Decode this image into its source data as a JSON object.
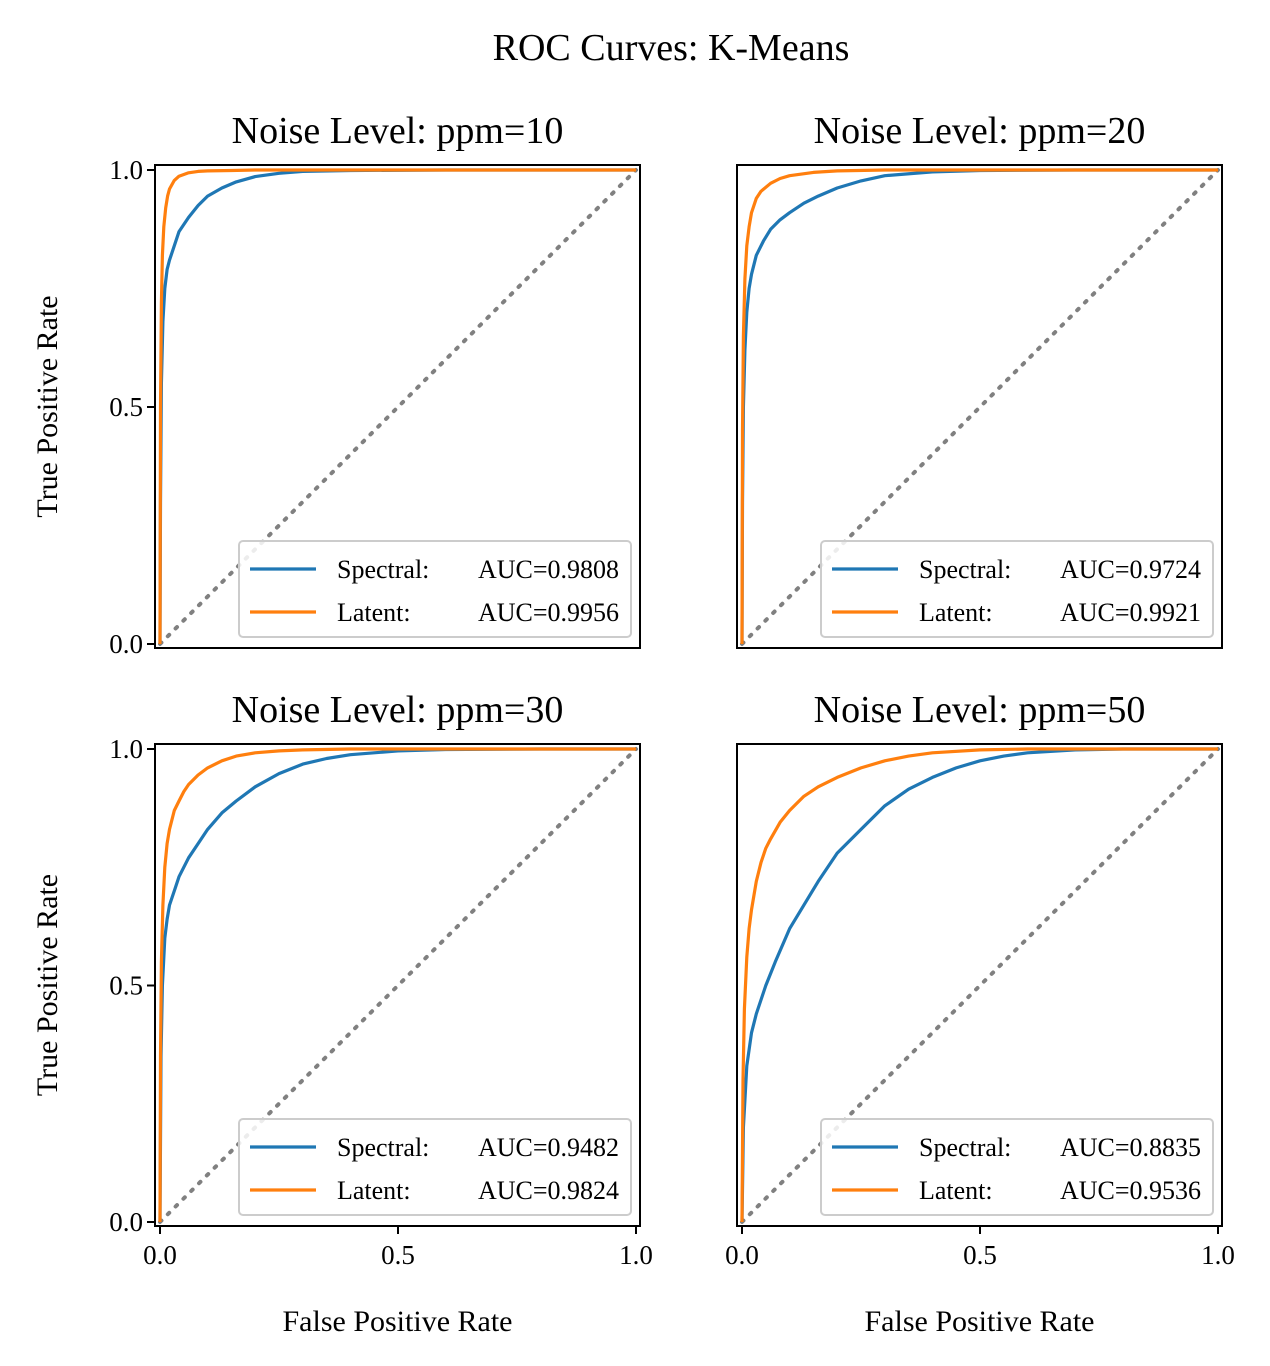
{
  "figure": {
    "title": "ROC Curves: K-Means"
  },
  "colors": {
    "spectral": "#1f77b4",
    "latent": "#ff7f0e",
    "chance": "#808080"
  },
  "chart_data": [
    {
      "type": "line",
      "title": "Noise Level: ppm=10",
      "xlabel": "",
      "ylabel": "True Positive Rate",
      "xlim": [
        0,
        1
      ],
      "ylim": [
        0,
        1
      ],
      "yticks": [
        "0.0",
        "0.5",
        "1.0"
      ],
      "xticks": [],
      "legend_position": "lower-right",
      "series": [
        {
          "name": "Spectral",
          "legend_label": "Spectral:",
          "auc_label": "AUC=0.9808",
          "x": [
            0,
            0.001,
            0.003,
            0.006,
            0.01,
            0.015,
            0.02,
            0.03,
            0.04,
            0.06,
            0.08,
            0.1,
            0.13,
            0.16,
            0.2,
            0.25,
            0.3,
            0.4,
            0.6,
            0.8,
            1.0
          ],
          "y": [
            0,
            0.3,
            0.55,
            0.68,
            0.75,
            0.79,
            0.81,
            0.84,
            0.87,
            0.9,
            0.925,
            0.945,
            0.962,
            0.975,
            0.986,
            0.993,
            0.997,
            0.999,
            1.0,
            1.0,
            1.0
          ]
        },
        {
          "name": "Latent",
          "legend_label": "Latent:",
          "auc_label": "AUC=0.9956",
          "x": [
            0,
            0.001,
            0.003,
            0.005,
            0.008,
            0.012,
            0.016,
            0.02,
            0.03,
            0.04,
            0.06,
            0.08,
            0.1,
            0.15,
            0.2,
            0.3,
            0.5,
            1.0
          ],
          "y": [
            0,
            0.5,
            0.72,
            0.82,
            0.88,
            0.92,
            0.945,
            0.96,
            0.978,
            0.987,
            0.994,
            0.997,
            0.998,
            0.999,
            1.0,
            1.0,
            1.0,
            1.0
          ]
        }
      ]
    },
    {
      "type": "line",
      "title": "Noise Level: ppm=20",
      "xlabel": "",
      "ylabel": "",
      "xlim": [
        0,
        1
      ],
      "ylim": [
        0,
        1
      ],
      "yticks": [],
      "xticks": [],
      "legend_position": "lower-right",
      "series": [
        {
          "name": "Spectral",
          "legend_label": "Spectral:",
          "auc_label": "AUC=0.9724",
          "x": [
            0,
            0.001,
            0.003,
            0.006,
            0.01,
            0.015,
            0.02,
            0.03,
            0.045,
            0.06,
            0.08,
            0.1,
            0.13,
            0.16,
            0.2,
            0.25,
            0.3,
            0.4,
            0.5,
            0.7,
            1.0
          ],
          "y": [
            0,
            0.3,
            0.5,
            0.62,
            0.7,
            0.75,
            0.78,
            0.82,
            0.85,
            0.875,
            0.895,
            0.91,
            0.93,
            0.945,
            0.962,
            0.977,
            0.988,
            0.996,
            0.999,
            1.0,
            1.0
          ]
        },
        {
          "name": "Latent",
          "legend_label": "Latent:",
          "auc_label": "AUC=0.9921",
          "x": [
            0,
            0.001,
            0.003,
            0.006,
            0.01,
            0.015,
            0.02,
            0.03,
            0.04,
            0.06,
            0.08,
            0.1,
            0.15,
            0.2,
            0.3,
            0.5,
            1.0
          ],
          "y": [
            0,
            0.45,
            0.65,
            0.77,
            0.84,
            0.88,
            0.91,
            0.94,
            0.955,
            0.972,
            0.982,
            0.988,
            0.995,
            0.998,
            1.0,
            1.0,
            1.0
          ]
        }
      ]
    },
    {
      "type": "line",
      "title": "Noise Level: ppm=30",
      "xlabel": "False Positive Rate",
      "ylabel": "True Positive Rate",
      "xlim": [
        0,
        1
      ],
      "ylim": [
        0,
        1
      ],
      "yticks": [
        "0.0",
        "0.5",
        "1.0"
      ],
      "xticks": [
        "0.0",
        "0.5",
        "1.0"
      ],
      "legend_position": "lower-right",
      "series": [
        {
          "name": "Spectral",
          "legend_label": "Spectral:",
          "auc_label": "AUC=0.9482",
          "x": [
            0,
            0.002,
            0.005,
            0.01,
            0.015,
            0.02,
            0.03,
            0.04,
            0.06,
            0.08,
            0.1,
            0.13,
            0.16,
            0.2,
            0.25,
            0.3,
            0.35,
            0.4,
            0.5,
            0.6,
            0.8,
            1.0
          ],
          "y": [
            0,
            0.35,
            0.5,
            0.6,
            0.64,
            0.67,
            0.7,
            0.73,
            0.77,
            0.8,
            0.83,
            0.865,
            0.89,
            0.92,
            0.948,
            0.968,
            0.98,
            0.988,
            0.996,
            0.999,
            1.0,
            1.0
          ]
        },
        {
          "name": "Latent",
          "legend_label": "Latent:",
          "auc_label": "AUC=0.9824",
          "x": [
            0,
            0.001,
            0.003,
            0.006,
            0.01,
            0.015,
            0.02,
            0.03,
            0.04,
            0.05,
            0.06,
            0.08,
            0.1,
            0.13,
            0.16,
            0.2,
            0.25,
            0.3,
            0.4,
            0.6,
            1.0
          ],
          "y": [
            0,
            0.35,
            0.55,
            0.67,
            0.75,
            0.8,
            0.83,
            0.87,
            0.89,
            0.91,
            0.925,
            0.945,
            0.96,
            0.975,
            0.985,
            0.992,
            0.996,
            0.998,
            1.0,
            1.0,
            1.0
          ]
        }
      ]
    },
    {
      "type": "line",
      "title": "Noise Level: ppm=50",
      "xlabel": "False Positive Rate",
      "ylabel": "",
      "xlim": [
        0,
        1
      ],
      "ylim": [
        0,
        1
      ],
      "yticks": [],
      "xticks": [
        "0.0",
        "0.5",
        "1.0"
      ],
      "legend_position": "lower-right",
      "series": [
        {
          "name": "Spectral",
          "legend_label": "Spectral:",
          "auc_label": "AUC=0.8835",
          "x": [
            0,
            0.003,
            0.01,
            0.02,
            0.03,
            0.05,
            0.07,
            0.1,
            0.13,
            0.16,
            0.2,
            0.25,
            0.3,
            0.35,
            0.4,
            0.45,
            0.5,
            0.55,
            0.6,
            0.7,
            0.8,
            1.0
          ],
          "y": [
            0,
            0.2,
            0.33,
            0.4,
            0.44,
            0.5,
            0.55,
            0.62,
            0.67,
            0.72,
            0.78,
            0.83,
            0.88,
            0.915,
            0.94,
            0.96,
            0.975,
            0.985,
            0.992,
            0.998,
            1.0,
            1.0
          ]
        },
        {
          "name": "Latent",
          "legend_label": "Latent:",
          "auc_label": "AUC=0.9536",
          "x": [
            0,
            0.002,
            0.005,
            0.01,
            0.015,
            0.02,
            0.03,
            0.04,
            0.05,
            0.06,
            0.08,
            0.1,
            0.13,
            0.16,
            0.2,
            0.25,
            0.3,
            0.35,
            0.4,
            0.5,
            0.6,
            0.8,
            1.0
          ],
          "y": [
            0,
            0.3,
            0.45,
            0.56,
            0.62,
            0.66,
            0.72,
            0.76,
            0.79,
            0.81,
            0.845,
            0.87,
            0.9,
            0.92,
            0.94,
            0.96,
            0.975,
            0.985,
            0.992,
            0.998,
            1.0,
            1.0,
            1.0
          ]
        }
      ]
    }
  ]
}
